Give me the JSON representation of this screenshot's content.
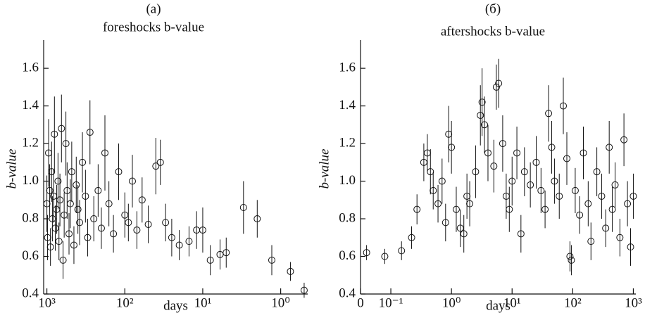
{
  "chart_data": [
    {
      "type": "scatter",
      "title": "(a)",
      "subtitle": "foreshocks b-value",
      "xlabel": "days",
      "ylabel": "b-value",
      "color": "#111111",
      "xscale": "log",
      "xlim": [
        1100,
        0.45
      ],
      "ylim": [
        0.4,
        1.75
      ],
      "xticks": [
        {
          "value": 1000,
          "label": "10³"
        },
        {
          "value": 100,
          "label": "10²"
        },
        {
          "value": 10,
          "label": "10¹"
        },
        {
          "value": 1,
          "label": "10⁰"
        }
      ],
      "yticks": [
        0.4,
        0.6,
        0.8,
        {
          "value": 1,
          "label": "1.0"
        },
        1.2,
        1.4,
        1.6
      ],
      "x": [
        1000,
        980,
        950,
        920,
        900,
        870,
        850,
        820,
        800,
        780,
        750,
        720,
        700,
        680,
        650,
        620,
        600,
        570,
        550,
        520,
        500,
        480,
        450,
        420,
        400,
        380,
        350,
        320,
        300,
        280,
        250,
        220,
        200,
        180,
        160,
        140,
        120,
        100,
        90,
        80,
        70,
        60,
        50,
        40,
        35,
        30,
        25,
        20,
        15,
        12,
        10,
        8,
        6,
        5,
        3,
        2,
        1.3,
        0.75,
        0.5
      ],
      "values": [
        0.88,
        0.7,
        1.15,
        0.95,
        0.65,
        1.05,
        0.8,
        0.92,
        1.25,
        0.75,
        0.85,
        1.0,
        0.68,
        0.9,
        1.28,
        0.58,
        0.82,
        1.2,
        0.95,
        0.72,
        0.88,
        1.05,
        0.66,
        0.98,
        0.85,
        0.78,
        1.1,
        0.92,
        0.7,
        1.26,
        0.8,
        0.95,
        0.75,
        1.15,
        0.88,
        0.72,
        1.05,
        0.82,
        0.78,
        1.0,
        0.74,
        0.9,
        0.77,
        1.08,
        1.1,
        0.78,
        0.7,
        0.66,
        0.68,
        0.74,
        0.74,
        0.58,
        0.61,
        0.62,
        0.86,
        0.8,
        0.58,
        0.52,
        0.42
      ],
      "errors": [
        0.15,
        0.12,
        0.18,
        0.14,
        0.1,
        0.16,
        0.12,
        0.14,
        0.2,
        0.12,
        0.13,
        0.15,
        0.1,
        0.14,
        0.18,
        0.1,
        0.12,
        0.17,
        0.15,
        0.11,
        0.13,
        0.16,
        0.1,
        0.15,
        0.13,
        0.12,
        0.16,
        0.14,
        0.1,
        0.17,
        0.12,
        0.14,
        0.11,
        0.2,
        0.12,
        0.1,
        0.15,
        0.12,
        0.1,
        0.14,
        0.1,
        0.12,
        0.1,
        0.15,
        0.12,
        0.1,
        0.1,
        0.08,
        0.08,
        0.1,
        0.12,
        0.08,
        0.08,
        0.08,
        0.14,
        0.1,
        0.08,
        0.05,
        0.04
      ]
    },
    {
      "type": "scatter",
      "title": "(б)",
      "subtitle": "aftershocks b-value",
      "xlabel": "days",
      "ylabel": "b-value",
      "color": "#111111",
      "xscale": "symlog",
      "linthresh": 0.1,
      "linscale": 0.5,
      "xlim": [
        0,
        1100
      ],
      "ylim": [
        0.4,
        1.75
      ],
      "xticks": [
        0,
        {
          "value": 0.1,
          "label": "10⁻¹"
        },
        {
          "value": 1,
          "label": "10⁰"
        },
        {
          "value": 10,
          "label": "10¹"
        },
        {
          "value": 100,
          "label": "10²"
        },
        {
          "value": 1000,
          "label": "10³"
        }
      ],
      "yticks": [
        0.4,
        0.6,
        0.8,
        {
          "value": 1,
          "label": "1.0"
        },
        1.2,
        1.4,
        1.6
      ],
      "x": [
        0.02,
        0.08,
        0.15,
        0.22,
        0.27,
        0.35,
        0.4,
        0.45,
        0.5,
        0.6,
        0.7,
        0.8,
        0.9,
        1.0,
        1.2,
        1.4,
        1.6,
        1.8,
        2,
        2.5,
        3,
        3.2,
        3.5,
        4,
        5,
        5.5,
        6,
        7,
        8,
        9,
        10,
        12,
        14,
        16,
        20,
        25,
        30,
        35,
        40,
        45,
        50,
        60,
        70,
        80,
        90,
        95,
        110,
        130,
        150,
        180,
        200,
        250,
        300,
        350,
        400,
        450,
        500,
        600,
        700,
        800,
        900,
        1000
      ],
      "values": [
        0.62,
        0.6,
        0.63,
        0.7,
        0.85,
        1.1,
        1.15,
        1.05,
        0.95,
        0.88,
        1.0,
        0.78,
        1.25,
        1.18,
        0.85,
        0.75,
        0.72,
        0.92,
        0.88,
        1.05,
        1.35,
        1.42,
        1.3,
        1.15,
        1.08,
        1.5,
        1.52,
        1.2,
        0.92,
        0.85,
        1.0,
        1.15,
        0.72,
        1.05,
        0.98,
        1.1,
        0.95,
        0.85,
        1.36,
        1.18,
        1.0,
        0.92,
        1.4,
        1.12,
        0.6,
        0.58,
        0.95,
        0.82,
        1.15,
        0.88,
        0.68,
        1.05,
        0.92,
        0.75,
        1.18,
        0.85,
        0.98,
        0.7,
        1.22,
        0.88,
        0.65,
        0.92
      ],
      "errors": [
        0.04,
        0.04,
        0.05,
        0.06,
        0.08,
        0.1,
        0.1,
        0.12,
        0.1,
        0.1,
        0.12,
        0.1,
        0.15,
        0.14,
        0.12,
        0.1,
        0.1,
        0.12,
        0.12,
        0.14,
        0.16,
        0.18,
        0.15,
        0.15,
        0.14,
        0.12,
        0.13,
        0.15,
        0.12,
        0.12,
        0.13,
        0.14,
        0.1,
        0.13,
        0.12,
        0.14,
        0.12,
        0.1,
        0.15,
        0.14,
        0.12,
        0.12,
        0.15,
        0.14,
        0.08,
        0.08,
        0.12,
        0.1,
        0.14,
        0.12,
        0.1,
        0.13,
        0.12,
        0.1,
        0.14,
        0.12,
        0.12,
        0.1,
        0.14,
        0.12,
        0.1,
        0.12
      ]
    }
  ]
}
